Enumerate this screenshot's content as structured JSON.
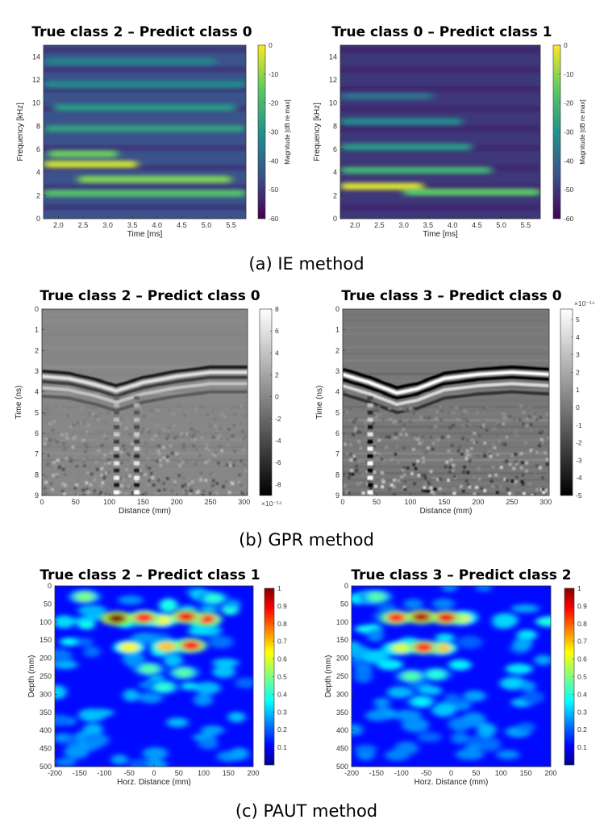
{
  "sections": [
    {
      "caption": "(a)  IE  method",
      "colormap": "viridis",
      "panels": [
        {
          "title": "True class 2 – Predict class 0",
          "chart_data": {
            "type": "heatmap",
            "xlabel": "Time [ms]",
            "ylabel": "Frequency [kHz]",
            "xlim": [
              1.7,
              5.8
            ],
            "ylim": [
              0,
              15
            ],
            "xticks": [
              "2.0",
              "2.5",
              "3.0",
              "3.5",
              "4.0",
              "4.5",
              "5.0",
              "5.5"
            ],
            "xtick_values": [
              2.0,
              2.5,
              3.0,
              3.5,
              4.0,
              4.5,
              5.0,
              5.5
            ],
            "yticks": [
              "0",
              "2",
              "4",
              "6",
              "8",
              "10",
              "12",
              "14"
            ],
            "ytick_values": [
              0,
              2,
              4,
              6,
              8,
              10,
              12,
              14
            ],
            "colorbar": {
              "label": "Magnitude [dB re max]",
              "ticks": [
                "0",
                "-10",
                "-20",
                "-30",
                "-40",
                "-50",
                "-60"
              ],
              "tick_values": [
                0,
                -10,
                -20,
                -30,
                -40,
                -50,
                -60
              ],
              "range": [
                -60,
                0
              ]
            },
            "bands": [
              {
                "y": 4.7,
                "x0": 1.7,
                "x1": 3.6,
                "db": -5
              },
              {
                "y": 3.4,
                "x0": 2.4,
                "x1": 5.5,
                "db": -12
              },
              {
                "y": 2.2,
                "x0": 1.7,
                "x1": 5.8,
                "db": -18
              },
              {
                "y": 5.6,
                "x0": 1.8,
                "x1": 3.2,
                "db": -14
              },
              {
                "y": 7.8,
                "x0": 1.7,
                "x1": 5.8,
                "db": -26
              },
              {
                "y": 9.6,
                "x0": 1.9,
                "x1": 5.6,
                "db": -28
              },
              {
                "y": 11.6,
                "x0": 1.7,
                "x1": 5.8,
                "db": -32
              },
              {
                "y": 13.6,
                "x0": 1.7,
                "x1": 5.2,
                "db": -34
              }
            ],
            "background_db": -45
          }
        },
        {
          "title": "True class 0 – Predict class 1",
          "chart_data": {
            "type": "heatmap",
            "xlabel": "Time [ms]",
            "ylabel": "Frequency [kHz]",
            "xlim": [
              1.7,
              5.8
            ],
            "ylim": [
              0,
              15
            ],
            "xticks": [
              "2.0",
              "2.5",
              "3.0",
              "3.5",
              "4.0",
              "4.5",
              "5.0",
              "5.5"
            ],
            "xtick_values": [
              2.0,
              2.5,
              3.0,
              3.5,
              4.0,
              4.5,
              5.0,
              5.5
            ],
            "yticks": [
              "0",
              "2",
              "4",
              "6",
              "8",
              "10",
              "12",
              "14"
            ],
            "ytick_values": [
              0,
              2,
              4,
              6,
              8,
              10,
              12,
              14
            ],
            "colorbar": {
              "label": "Magnitude [dB re max]",
              "ticks": [
                "0",
                "-10",
                "-20",
                "-30",
                "-40",
                "-50",
                "-60"
              ],
              "tick_values": [
                0,
                -10,
                -20,
                -30,
                -40,
                -50,
                -60
              ],
              "range": [
                -60,
                0
              ]
            },
            "bands": [
              {
                "y": 2.8,
                "x0": 1.7,
                "x1": 3.4,
                "db": -4
              },
              {
                "y": 2.3,
                "x0": 3.0,
                "x1": 5.8,
                "db": -16
              },
              {
                "y": 4.2,
                "x0": 1.7,
                "x1": 4.8,
                "db": -22
              },
              {
                "y": 6.2,
                "x0": 1.7,
                "x1": 4.4,
                "db": -28
              },
              {
                "y": 8.4,
                "x0": 1.7,
                "x1": 4.2,
                "db": -32
              },
              {
                "y": 10.6,
                "x0": 1.7,
                "x1": 3.6,
                "db": -38
              }
            ],
            "background_db": -50
          }
        }
      ]
    },
    {
      "caption": "(b)  GPR  method",
      "colormap": "gray",
      "panels": [
        {
          "title": "True class 2 – Predict class 0",
          "chart_data": {
            "type": "heatmap",
            "xlabel": "Distance (mm)",
            "ylabel": "Time (ns)",
            "xlim": [
              0,
              305
            ],
            "ylim": [
              9,
              0
            ],
            "xticks": [
              "0",
              "50",
              "100",
              "150",
              "200",
              "250",
              "300"
            ],
            "xtick_values": [
              0,
              50,
              100,
              150,
              200,
              250,
              300
            ],
            "yticks": [
              "0",
              "1",
              "2",
              "3",
              "4",
              "5",
              "6",
              "7",
              "8",
              "9"
            ],
            "ytick_values": [
              0,
              1,
              2,
              3,
              4,
              5,
              6,
              7,
              8,
              9
            ],
            "colorbar": {
              "label": "",
              "exponent": "×10⁻¹⁴",
              "exponent_position": "bottom",
              "ticks": [
                "8",
                "6",
                "4",
                "2",
                "0",
                "-2",
                "-4",
                "-6",
                "-8"
              ],
              "tick_values": [
                8,
                6,
                4,
                2,
                0,
                -2,
                -4,
                -6,
                -8
              ],
              "range": [
                -9,
                8
              ]
            },
            "hyperbola_curve": [
              [
                0,
                3.0
              ],
              [
                40,
                3.1
              ],
              [
                80,
                3.4
              ],
              [
                110,
                3.7
              ],
              [
                150,
                3.3
              ],
              [
                200,
                3.0
              ],
              [
                250,
                2.8
              ],
              [
                305,
                2.8
              ]
            ],
            "strong_columns": [
              110,
              140
            ]
          }
        },
        {
          "title": "True class 3 – Predict class 0",
          "chart_data": {
            "type": "heatmap",
            "xlabel": "Distance (mm)",
            "ylabel": "Time (ns)",
            "xlim": [
              0,
              305
            ],
            "ylim": [
              9,
              0
            ],
            "xticks": [
              "0",
              "50",
              "100",
              "150",
              "200",
              "250",
              "300"
            ],
            "xtick_values": [
              0,
              50,
              100,
              150,
              200,
              250,
              300
            ],
            "yticks": [
              "0",
              "1",
              "2",
              "3",
              "4",
              "5",
              "6",
              "7",
              "8",
              "9"
            ],
            "ytick_values": [
              0,
              1,
              2,
              3,
              4,
              5,
              6,
              7,
              8,
              9
            ],
            "colorbar": {
              "label": "",
              "exponent": "×10⁻¹⁴",
              "exponent_position": "top",
              "ticks": [
                "5",
                "4",
                "3",
                "2",
                "1",
                "0",
                "-1",
                "-2",
                "-3",
                "-4",
                "-5"
              ],
              "tick_values": [
                5,
                4,
                3,
                2,
                1,
                0,
                -1,
                -2,
                -3,
                -4,
                -5
              ],
              "range": [
                -5,
                5.6
              ]
            },
            "hyperbola_curve": [
              [
                0,
                2.9
              ],
              [
                40,
                3.3
              ],
              [
                80,
                3.8
              ],
              [
                110,
                3.6
              ],
              [
                150,
                3.1
              ],
              [
                200,
                2.9
              ],
              [
                250,
                2.8
              ],
              [
                305,
                2.9
              ]
            ],
            "strong_columns": [
              40
            ]
          }
        }
      ]
    },
    {
      "caption": "(c)  PAUT  method",
      "colormap": "jet",
      "panels": [
        {
          "title": "True class 2 – Predict class 1",
          "chart_data": {
            "type": "heatmap",
            "xlabel": "Horz. Distance (mm)",
            "ylabel": "Depth (mm)",
            "xlim": [
              -200,
              200
            ],
            "ylim": [
              500,
              0
            ],
            "xticks": [
              "-200",
              "-150",
              "-100",
              "-50",
              "0",
              "50",
              "100",
              "150",
              "200"
            ],
            "xtick_values": [
              -200,
              -150,
              -100,
              -50,
              0,
              50,
              100,
              150,
              200
            ],
            "yticks": [
              "0",
              "50",
              "100",
              "150",
              "200",
              "250",
              "300",
              "350",
              "400",
              "450",
              "500"
            ],
            "ytick_values": [
              0,
              50,
              100,
              150,
              200,
              250,
              300,
              350,
              400,
              450,
              500
            ],
            "colorbar": {
              "label": "",
              "ticks": [
                "1",
                "0.9",
                "0.8",
                "0.7",
                "0.6",
                "0.5",
                "0.4",
                "0.3",
                "0.2",
                "0.1"
              ],
              "tick_values": [
                1,
                0.9,
                0.8,
                0.7,
                0.6,
                0.5,
                0.4,
                0.3,
                0.2,
                0.1
              ],
              "range": [
                0,
                1
              ]
            },
            "spots": [
              {
                "x": -75,
                "y": 90,
                "v": 1.0
              },
              {
                "x": -20,
                "y": 88,
                "v": 0.85
              },
              {
                "x": 65,
                "y": 85,
                "v": 0.9
              },
              {
                "x": 105,
                "y": 92,
                "v": 0.85
              },
              {
                "x": 15,
                "y": 95,
                "v": 0.65
              },
              {
                "x": -50,
                "y": 170,
                "v": 0.65
              },
              {
                "x": 25,
                "y": 168,
                "v": 0.7
              },
              {
                "x": 75,
                "y": 165,
                "v": 0.88
              },
              {
                "x": -10,
                "y": 230,
                "v": 0.45
              },
              {
                "x": 60,
                "y": 240,
                "v": 0.45
              },
              {
                "x": 20,
                "y": 280,
                "v": 0.4
              },
              {
                "x": -140,
                "y": 30,
                "v": 0.5
              },
              {
                "x": 120,
                "y": 35,
                "v": 0.4
              }
            ]
          }
        },
        {
          "title": "True class 3 – Predict class 2",
          "chart_data": {
            "type": "heatmap",
            "xlabel": "Horz. Distance (mm)",
            "ylabel": "Depth (mm)",
            "xlim": [
              -200,
              200
            ],
            "ylim": [
              500,
              0
            ],
            "xticks": [
              "-200",
              "-150",
              "-100",
              "-50",
              "0",
              "50",
              "100",
              "150",
              "200"
            ],
            "xtick_values": [
              -200,
              -150,
              -100,
              -50,
              0,
              50,
              100,
              150,
              200
            ],
            "yticks": [
              "0",
              "50",
              "100",
              "150",
              "200",
              "250",
              "300",
              "350",
              "400",
              "450",
              "500"
            ],
            "ytick_values": [
              0,
              50,
              100,
              150,
              200,
              250,
              300,
              350,
              400,
              450,
              500
            ],
            "colorbar": {
              "label": "",
              "ticks": [
                "1",
                "0.9",
                "0.8",
                "0.7",
                "0.6",
                "0.5",
                "0.4",
                "0.3",
                "0.2",
                "0.1"
              ],
              "tick_values": [
                1,
                0.9,
                0.8,
                0.7,
                0.6,
                0.5,
                0.4,
                0.3,
                0.2,
                0.1
              ],
              "range": [
                0,
                1
              ]
            },
            "spots": [
              {
                "x": -110,
                "y": 88,
                "v": 0.85
              },
              {
                "x": -60,
                "y": 86,
                "v": 0.95
              },
              {
                "x": -10,
                "y": 88,
                "v": 0.9
              },
              {
                "x": 20,
                "y": 90,
                "v": 0.6
              },
              {
                "x": -100,
                "y": 172,
                "v": 0.6
              },
              {
                "x": -55,
                "y": 170,
                "v": 0.85
              },
              {
                "x": -20,
                "y": 172,
                "v": 0.7
              },
              {
                "x": -80,
                "y": 250,
                "v": 0.45
              },
              {
                "x": -30,
                "y": 245,
                "v": 0.4
              },
              {
                "x": -60,
                "y": 320,
                "v": 0.35
              },
              {
                "x": -150,
                "y": 30,
                "v": 0.45
              }
            ]
          }
        }
      ]
    }
  ]
}
